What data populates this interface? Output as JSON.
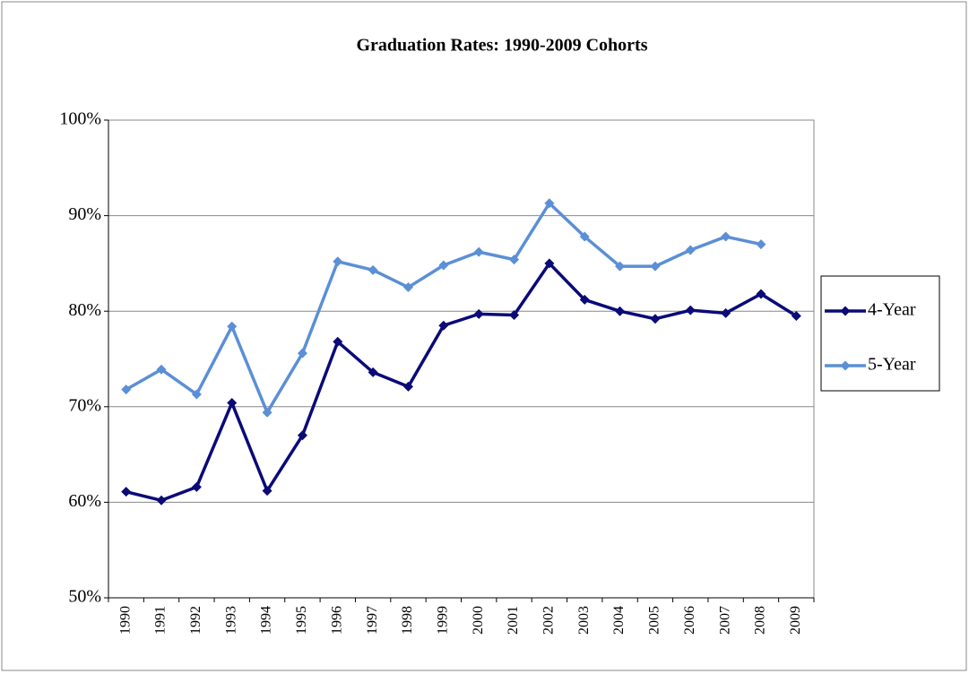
{
  "chart_data": {
    "type": "line",
    "title": "Graduation Rates: 1990-2009 Cohorts",
    "categories": [
      "1990",
      "1991",
      "1992",
      "1993",
      "1994",
      "1995",
      "1996",
      "1997",
      "1998",
      "1999",
      "2000",
      "2001",
      "2002",
      "2003",
      "2004",
      "2005",
      "2006",
      "2007",
      "2008",
      "2009"
    ],
    "series": [
      {
        "name": "4-Year",
        "color": "#0a0a78",
        "values": [
          61.1,
          60.2,
          61.6,
          70.4,
          61.2,
          67.0,
          76.8,
          73.6,
          72.1,
          78.5,
          79.7,
          79.6,
          85.0,
          81.2,
          80.0,
          79.2,
          80.1,
          79.8,
          81.8,
          79.5
        ]
      },
      {
        "name": "5-Year",
        "color": "#5b8fd6",
        "values": [
          71.8,
          73.9,
          71.3,
          78.4,
          69.4,
          75.6,
          85.2,
          84.3,
          82.5,
          84.8,
          86.2,
          85.4,
          91.3,
          87.8,
          84.7,
          84.7,
          86.4,
          87.8,
          87.0,
          null
        ]
      }
    ],
    "ylim": [
      50,
      100
    ],
    "yticks": [
      {
        "value": 50,
        "label": "50%"
      },
      {
        "value": 60,
        "label": "60%"
      },
      {
        "value": 70,
        "label": "70%"
      },
      {
        "value": 80,
        "label": "80%"
      },
      {
        "value": 90,
        "label": "90%"
      },
      {
        "value": 100,
        "label": "100%"
      }
    ],
    "grid": true,
    "legend": "right"
  }
}
